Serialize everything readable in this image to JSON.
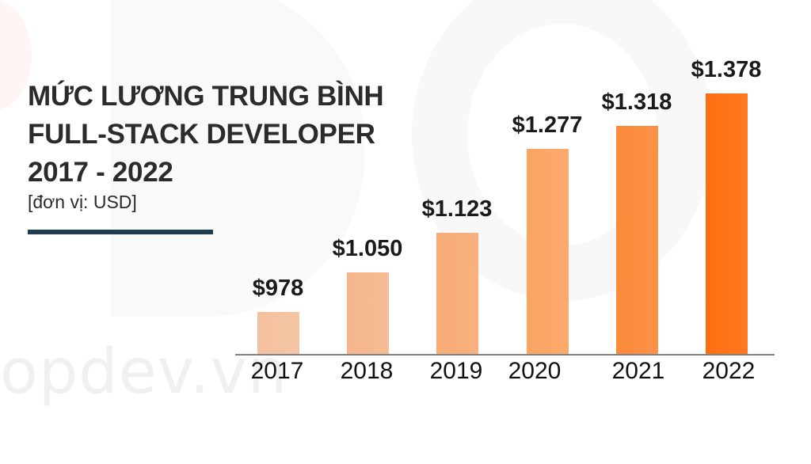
{
  "title": {
    "line1": "MỨC LƯƠNG TRUNG BÌNH",
    "line2": "FULL-STACK DEVELOPER",
    "line3": "2017 - 2022",
    "unit": "[đơn vị: USD]"
  },
  "watermark": "opdev.vn",
  "chart_data": {
    "type": "bar",
    "title": "MỨC LƯƠNG TRUNG BÌNH FULL-STACK DEVELOPER 2017 - 2022",
    "subtitle": "[đơn vị: USD]",
    "xlabel": "",
    "ylabel": "USD",
    "categories": [
      "2017",
      "2018",
      "2019",
      "2020",
      "2021",
      "2022"
    ],
    "values": [
      978,
      1050,
      1123,
      1277,
      1318,
      1378
    ],
    "data_labels": [
      "$978",
      "$1.050",
      "$1.123",
      "$1.277",
      "$1.318",
      "$1.378"
    ],
    "colors": [
      "#f4c19e",
      "#f5b68b",
      "#f8ab76",
      "#fba463",
      "#fc8a3a",
      "#fe6f10"
    ],
    "grid": false,
    "legend": "none"
  }
}
